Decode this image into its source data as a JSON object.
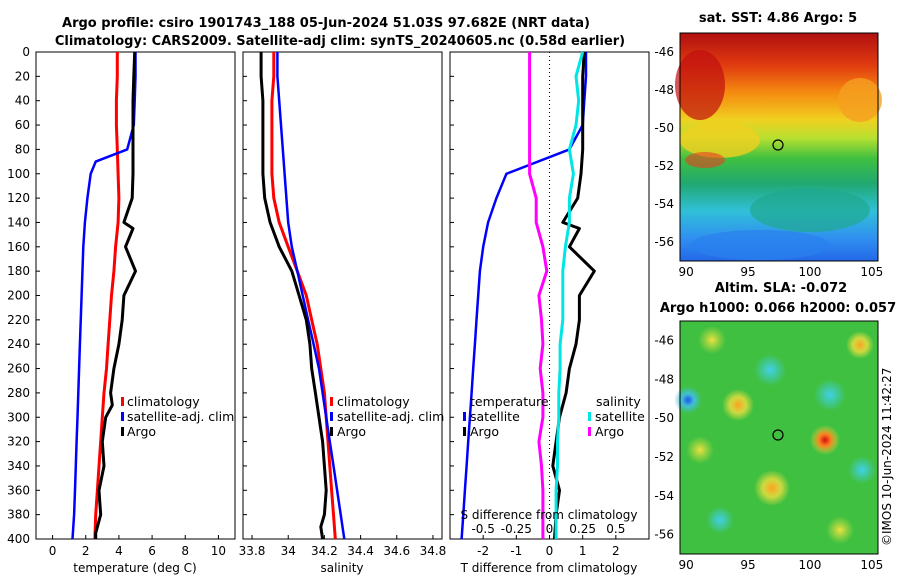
{
  "title_line1": "Argo profile: csiro 1901743_188 05-Jun-2024 51.03S 97.682E (NRT data)",
  "title_line2": "Climatology: CARS2009. Satellite-adj clim: synTS_20240605.nc (0.58d earlier)",
  "timestamp": "©IMOS 10-Jun-2024 11:42:27",
  "colors": {
    "climatology": "#ff0000",
    "satellite": "#0000ff",
    "argo": "#000000",
    "satellite_s": "#00e5e5",
    "argo_s": "#ff00ff"
  },
  "depth_ticks": [
    "0",
    "20",
    "40",
    "60",
    "80",
    "100",
    "120",
    "140",
    "160",
    "180",
    "200",
    "220",
    "240",
    "260",
    "280",
    "300",
    "320",
    "340",
    "360",
    "380",
    "400"
  ],
  "chart_data": [
    {
      "type": "line",
      "name": "temperature",
      "xlabel": "temperature (deg C)",
      "ylabel": "depth",
      "xlim": [
        -1,
        11
      ],
      "ylim": [
        400,
        0
      ],
      "xticks": [
        "0",
        "2",
        "4",
        "6",
        "8",
        "10"
      ],
      "legend": [
        "climatology",
        "satellite-adj. clim",
        "Argo"
      ],
      "series": [
        {
          "name": "climatology",
          "x": [
            3.9,
            3.9,
            3.85,
            3.85,
            3.9,
            3.95,
            4.0,
            3.95,
            3.8,
            3.7,
            3.55,
            3.45,
            3.35,
            3.25,
            3.1,
            3.0,
            2.9,
            2.8,
            2.7,
            2.6,
            2.55
          ],
          "y": [
            0,
            20,
            40,
            60,
            80,
            100,
            120,
            140,
            160,
            180,
            200,
            220,
            240,
            260,
            280,
            300,
            320,
            340,
            360,
            380,
            400
          ]
        },
        {
          "name": "satellite-adj. clim",
          "x": [
            5.0,
            5.0,
            4.95,
            4.9,
            4.5,
            2.6,
            2.3,
            2.1,
            1.95,
            1.85,
            1.75,
            1.65,
            1.6,
            1.55,
            1.5,
            1.45,
            1.4,
            1.35,
            1.3,
            1.25,
            1.2
          ],
          "y": [
            0,
            20,
            40,
            60,
            80,
            90,
            100,
            120,
            140,
            160,
            200,
            240,
            260,
            280,
            300,
            320,
            340,
            360,
            380,
            390,
            400
          ]
        },
        {
          "name": "Argo",
          "x": [
            4.95,
            4.9,
            4.85,
            4.85,
            4.85,
            4.85,
            4.8,
            4.3,
            4.85,
            4.4,
            5.0,
            4.3,
            4.2,
            4.0,
            3.7,
            3.5,
            3.6,
            3.2,
            3.0,
            3.1,
            2.8,
            2.85,
            2.9,
            2.7,
            2.6,
            2.6
          ],
          "y": [
            0,
            20,
            40,
            60,
            80,
            100,
            120,
            140,
            145,
            160,
            180,
            200,
            220,
            240,
            260,
            280,
            290,
            300,
            320,
            340,
            360,
            370,
            380,
            390,
            395,
            400
          ]
        }
      ]
    },
    {
      "type": "line",
      "name": "salinity",
      "xlabel": "salinity",
      "ylabel": "depth",
      "xlim": [
        33.75,
        34.85
      ],
      "ylim": [
        400,
        0
      ],
      "xticks": [
        "33.8",
        "34",
        "34.2",
        "34.4",
        "34.6",
        "34.8"
      ],
      "legend": [
        "climatology",
        "satellite-adj. clim",
        "Argo"
      ],
      "series": [
        {
          "name": "climatology",
          "x": [
            33.92,
            33.92,
            33.91,
            33.91,
            33.91,
            33.91,
            33.92,
            33.95,
            34.0,
            34.05,
            34.1,
            34.13,
            34.16,
            34.18,
            34.2,
            34.21,
            34.22,
            34.23,
            34.24,
            34.25,
            34.26
          ],
          "y": [
            0,
            20,
            40,
            60,
            80,
            100,
            120,
            140,
            160,
            180,
            200,
            220,
            240,
            260,
            280,
            300,
            320,
            340,
            360,
            380,
            400
          ]
        },
        {
          "name": "satellite-adj. clim",
          "x": [
            33.94,
            33.94,
            33.95,
            33.96,
            33.97,
            33.98,
            33.99,
            34.0,
            34.02,
            34.05,
            34.08,
            34.11,
            34.14,
            34.17,
            34.19,
            34.21,
            34.23,
            34.25,
            34.27,
            34.29,
            34.31
          ],
          "y": [
            0,
            20,
            40,
            60,
            80,
            100,
            120,
            140,
            160,
            180,
            200,
            220,
            240,
            260,
            280,
            300,
            320,
            340,
            360,
            380,
            400
          ]
        },
        {
          "name": "Argo",
          "x": [
            33.85,
            33.85,
            33.86,
            33.86,
            33.86,
            33.86,
            33.87,
            33.9,
            33.95,
            34.02,
            34.06,
            34.1,
            34.12,
            34.13,
            34.15,
            34.17,
            34.19,
            34.2,
            34.21,
            34.2,
            34.18,
            34.19
          ],
          "y": [
            0,
            20,
            40,
            60,
            80,
            100,
            120,
            140,
            160,
            180,
            200,
            220,
            240,
            260,
            280,
            300,
            320,
            340,
            360,
            380,
            390,
            400
          ]
        }
      ]
    },
    {
      "type": "line",
      "name": "difference-from-climatology",
      "xlabel": "T difference from climatology",
      "top_label": "S difference from climatology",
      "xlim": [
        -3,
        3
      ],
      "ylim": [
        400,
        0
      ],
      "xticks": [
        "-2",
        "-1",
        "0",
        "1",
        "2"
      ],
      "s_xticks": [
        "-0.5",
        "-0.25",
        "0",
        "0.25",
        "0.5"
      ],
      "legend_temperature": [
        "temperature",
        "satellite",
        "Argo"
      ],
      "legend_salinity": [
        "salinity",
        "satellite",
        "Argo"
      ],
      "series": [
        {
          "name": "T satellite",
          "x": [
            1.1,
            1.1,
            1.05,
            1.0,
            0.6,
            -1.3,
            -1.6,
            -1.85,
            -2.0,
            -2.1,
            -2.15,
            -2.2,
            -2.25,
            -2.3,
            -2.35,
            -2.4,
            -2.45,
            -2.5,
            -2.55,
            -2.6,
            -2.65
          ],
          "y": [
            0,
            20,
            40,
            60,
            80,
            100,
            120,
            140,
            160,
            180,
            200,
            220,
            240,
            260,
            280,
            300,
            320,
            340,
            360,
            380,
            400
          ]
        },
        {
          "name": "T Argo",
          "x": [
            1.05,
            1.0,
            1.0,
            1.0,
            1.0,
            0.95,
            0.85,
            0.4,
            0.9,
            0.6,
            1.35,
            0.9,
            0.9,
            0.8,
            0.6,
            0.5,
            0.3,
            0.2,
            0.1,
            0.3,
            0.2,
            0.15
          ],
          "y": [
            0,
            20,
            40,
            60,
            80,
            100,
            120,
            140,
            145,
            160,
            180,
            200,
            220,
            240,
            260,
            280,
            300,
            320,
            340,
            360,
            380,
            400
          ]
        },
        {
          "name": "S satellite",
          "x": [
            0.25,
            0.2,
            0.22,
            0.2,
            0.15,
            0.18,
            0.15,
            0.15,
            0.12,
            0.1,
            0.1,
            0.1,
            0.08,
            0.08,
            0.07,
            0.07,
            0.06,
            0.06,
            0.05,
            0.05,
            0.05
          ],
          "y": [
            0,
            20,
            40,
            60,
            80,
            100,
            120,
            140,
            160,
            180,
            200,
            220,
            240,
            260,
            280,
            300,
            320,
            340,
            360,
            380,
            400
          ]
        },
        {
          "name": "S Argo",
          "x": [
            -0.15,
            -0.15,
            -0.15,
            -0.15,
            -0.15,
            -0.15,
            -0.1,
            -0.1,
            -0.05,
            -0.02,
            -0.08,
            -0.06,
            -0.05,
            -0.07,
            -0.05,
            -0.05,
            -0.08,
            -0.06,
            -0.05,
            -0.05,
            -0.05
          ],
          "y": [
            0,
            20,
            40,
            60,
            80,
            100,
            120,
            140,
            160,
            180,
            200,
            220,
            240,
            260,
            280,
            300,
            320,
            340,
            360,
            380,
            400
          ]
        }
      ]
    },
    {
      "type": "heatmap",
      "name": "satellite-sst-map",
      "title": "sat. SST: 4.86 Argo: 5",
      "xlim": [
        89.5,
        105.5
      ],
      "ylim": [
        -57,
        -45
      ],
      "xticks": [
        "90",
        "95",
        "100",
        "105"
      ],
      "yticks": [
        "-46",
        "-48",
        "-50",
        "-52",
        "-54",
        "-56"
      ],
      "argo_location": {
        "lon": 97.682,
        "lat": -51.03
      }
    },
    {
      "type": "heatmap",
      "name": "altimetry-sla-map",
      "title_line1": "Altim. SLA: -0.072",
      "title_line2": "Argo h1000: 0.066 h2000: 0.057",
      "xlim": [
        89.5,
        105.5
      ],
      "ylim": [
        -57,
        -45
      ],
      "xticks": [
        "90",
        "95",
        "100",
        "105"
      ],
      "yticks": [
        "-46",
        "-48",
        "-50",
        "-52",
        "-54",
        "-56"
      ],
      "argo_location": {
        "lon": 97.682,
        "lat": -51.03
      }
    }
  ]
}
